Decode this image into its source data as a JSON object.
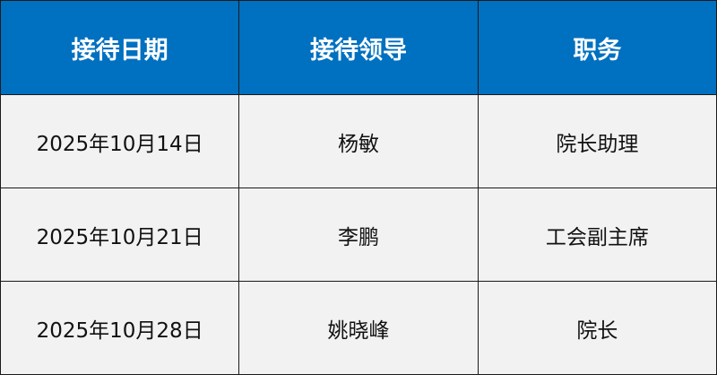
{
  "table": {
    "headers": [
      "接待日期",
      "接待领导",
      "职务"
    ],
    "rows": [
      [
        "2025年10月14日",
        "杨敏",
        "院长助理"
      ],
      [
        "2025年10月21日",
        "李鹏",
        "工会副主席"
      ],
      [
        "2025年10月28日",
        "姚晓峰",
        "院长"
      ]
    ]
  },
  "colors": {
    "header_bg": "#0070C0",
    "cell_bg": "#F2F2F2"
  }
}
